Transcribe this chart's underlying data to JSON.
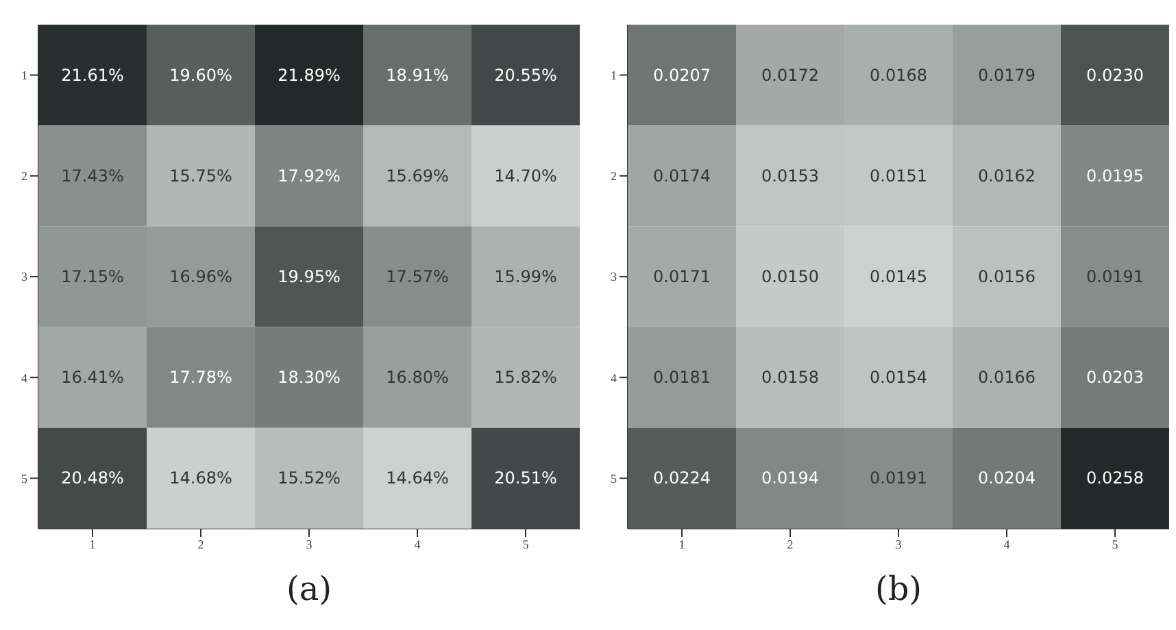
{
  "chart_data": [
    {
      "type": "heatmap",
      "xlabel": "(a)",
      "categories": [
        "1",
        "2",
        "3",
        "4",
        "5"
      ],
      "y_categories": [
        "1",
        "2",
        "3",
        "4",
        "5"
      ],
      "cells": [
        [
          21.61,
          19.6,
          21.89,
          18.91,
          20.55
        ],
        [
          17.43,
          15.75,
          17.92,
          15.69,
          14.7
        ],
        [
          17.15,
          16.96,
          19.95,
          17.57,
          15.99
        ],
        [
          16.41,
          17.78,
          18.3,
          16.8,
          15.82
        ],
        [
          20.48,
          14.68,
          15.52,
          14.64,
          20.51
        ]
      ],
      "cell_labels": [
        [
          "21.61%",
          "19.60%",
          "21.89%",
          "18.91%",
          "20.55%"
        ],
        [
          "17.43%",
          "15.75%",
          "17.92%",
          "15.69%",
          "14.70%"
        ],
        [
          "17.15%",
          "16.96%",
          "19.95%",
          "17.57%",
          "15.99%"
        ],
        [
          "16.41%",
          "17.78%",
          "18.30%",
          "16.80%",
          "15.82%"
        ],
        [
          "20.48%",
          "14.68%",
          "15.52%",
          "14.64%",
          "20.51%"
        ]
      ]
    },
    {
      "type": "heatmap",
      "xlabel": "(b)",
      "categories": [
        "1",
        "2",
        "3",
        "4",
        "5"
      ],
      "y_categories": [
        "1",
        "2",
        "3",
        "4",
        "5"
      ],
      "cells": [
        [
          0.0207,
          0.0172,
          0.0168,
          0.0179,
          0.023
        ],
        [
          0.0174,
          0.0153,
          0.0151,
          0.0162,
          0.0195
        ],
        [
          0.0171,
          0.015,
          0.0145,
          0.0156,
          0.0191
        ],
        [
          0.0181,
          0.0158,
          0.0154,
          0.0166,
          0.0203
        ],
        [
          0.0224,
          0.0194,
          0.0191,
          0.0204,
          0.0258
        ]
      ],
      "cell_labels": [
        [
          "0.0207",
          "0.0172",
          "0.0168",
          "0.0179",
          "0.0230"
        ],
        [
          "0.0174",
          "0.0153",
          "0.0151",
          "0.0162",
          "0.0195"
        ],
        [
          "0.0171",
          "0.0150",
          "0.0145",
          "0.0156",
          "0.0191"
        ],
        [
          "0.0181",
          "0.0158",
          "0.0154",
          "0.0166",
          "0.0203"
        ],
        [
          "0.0224",
          "0.0194",
          "0.0191",
          "0.0204",
          "0.0258"
        ]
      ]
    }
  ]
}
